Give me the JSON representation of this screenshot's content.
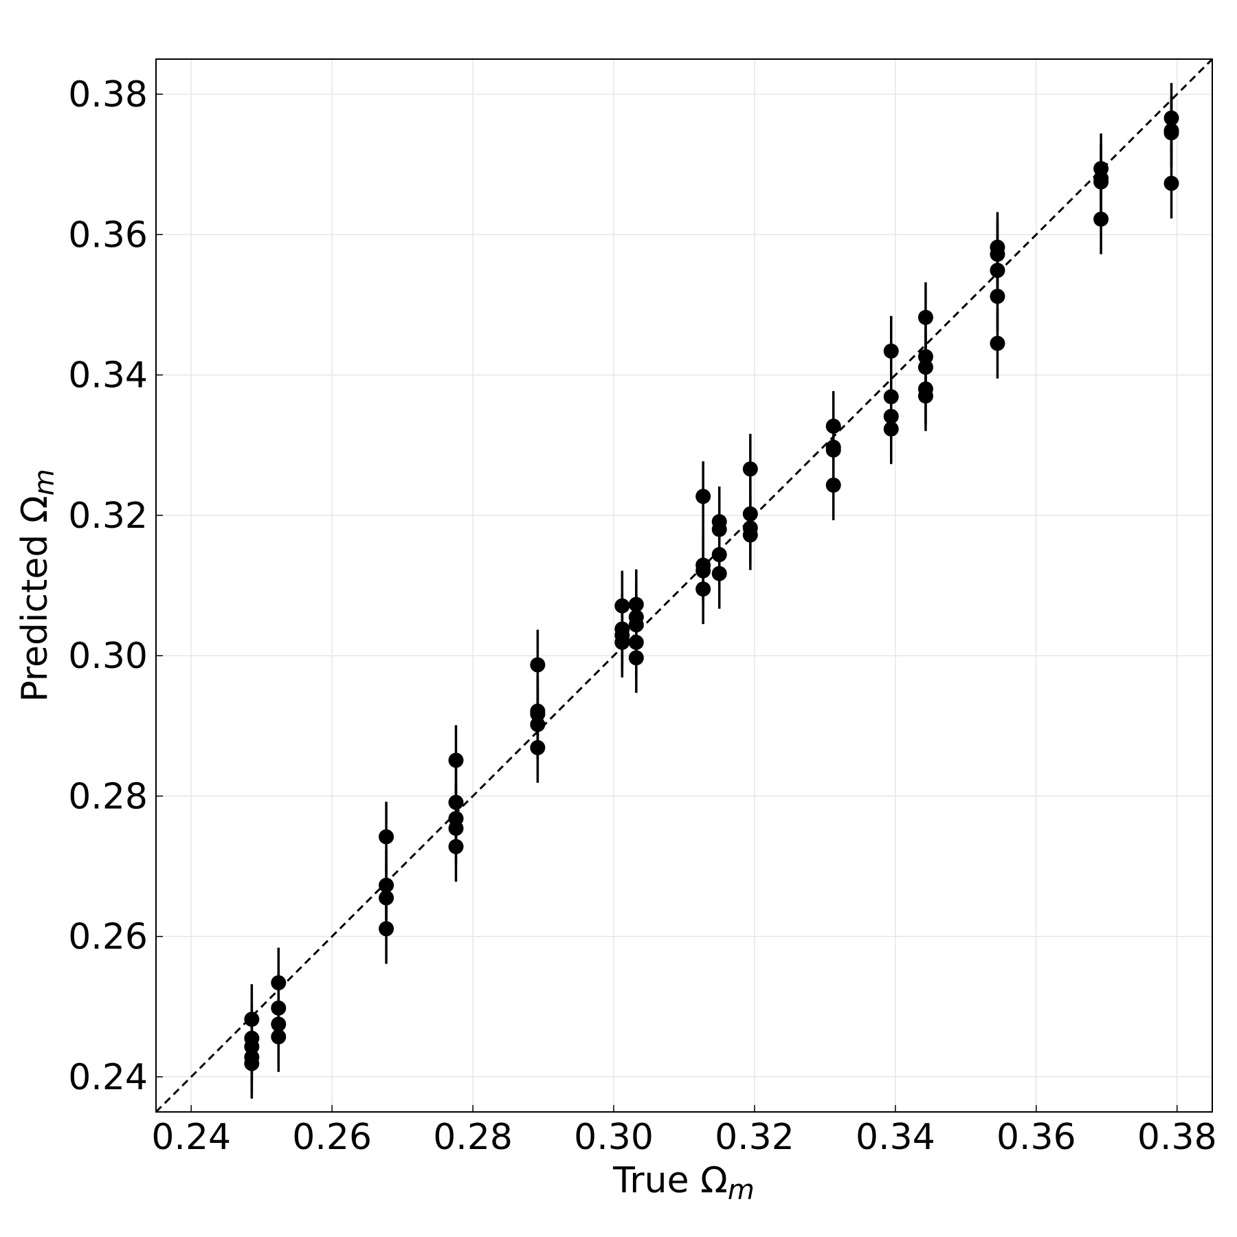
{
  "chart_data": {
    "type": "errorbar",
    "xlabel": "True Ω",
    "xlabel_sub": "m",
    "ylabel": "Predicted Ω",
    "ylabel_sub": "m",
    "xlim": [
      0.235,
      0.385
    ],
    "ylim": [
      0.235,
      0.385
    ],
    "xticks": [
      0.24,
      0.26,
      0.28,
      {
        "value": 0.3,
        "label": "0.30"
      },
      0.32,
      0.34,
      0.36,
      0.38
    ],
    "yticks": [
      0.24,
      0.26,
      0.28,
      {
        "value": 0.3,
        "label": "0.30"
      },
      0.32,
      0.34,
      0.36,
      0.38
    ],
    "grid": true,
    "identity_line": true,
    "color": "#000000",
    "points": {
      "x": [
        0.2486,
        0.2486,
        0.2486,
        0.2486,
        0.2486,
        0.2524,
        0.2524,
        0.2524,
        0.2524,
        0.2677,
        0.2677,
        0.2677,
        0.2677,
        0.2776,
        0.2776,
        0.2776,
        0.2776,
        0.2776,
        0.2892,
        0.2892,
        0.2892,
        0.2892,
        0.2892,
        0.3012,
        0.3012,
        0.3012,
        0.3012,
        0.3032,
        0.3032,
        0.3032,
        0.3032,
        0.3032,
        0.3127,
        0.3127,
        0.3127,
        0.3127,
        0.315,
        0.315,
        0.315,
        0.315,
        0.3194,
        0.3194,
        0.3194,
        0.3194,
        0.3312,
        0.3312,
        0.3312,
        0.3312,
        0.3394,
        0.3394,
        0.3394,
        0.3394,
        0.3443,
        0.3443,
        0.3443,
        0.3443,
        0.3443,
        0.3545,
        0.3545,
        0.3545,
        0.3545,
        0.3545,
        0.3692,
        0.3692,
        0.3692,
        0.3692,
        0.3792,
        0.3792,
        0.3792,
        0.3792
      ],
      "y": [
        0.2482,
        0.2455,
        0.2443,
        0.2428,
        0.2419,
        0.2534,
        0.2498,
        0.2475,
        0.2457,
        0.2742,
        0.2673,
        0.2655,
        0.2611,
        0.2851,
        0.2791,
        0.2768,
        0.2754,
        0.2728,
        0.2987,
        0.2921,
        0.2917,
        0.2902,
        0.2869,
        0.3071,
        0.3038,
        0.3029,
        0.3019,
        0.3073,
        0.3055,
        0.3044,
        0.3019,
        0.2997,
        0.3227,
        0.3129,
        0.3121,
        0.3095,
        0.3191,
        0.318,
        0.3144,
        0.3117,
        0.3266,
        0.3202,
        0.3182,
        0.3172,
        0.3327,
        0.3297,
        0.3293,
        0.3243,
        0.3434,
        0.3369,
        0.3341,
        0.3323,
        0.3482,
        0.3426,
        0.3411,
        0.338,
        0.337,
        0.3582,
        0.3572,
        0.3549,
        0.3512,
        0.3445,
        0.3694,
        0.368,
        0.3675,
        0.3622,
        0.3766,
        0.3748,
        0.3745,
        0.3673
      ],
      "yerr": [
        0.005,
        0.005,
        0.005,
        0.005,
        0.005,
        0.005,
        0.005,
        0.005,
        0.005,
        0.005,
        0.005,
        0.005,
        0.005,
        0.005,
        0.005,
        0.005,
        0.005,
        0.005,
        0.005,
        0.005,
        0.005,
        0.005,
        0.005,
        0.005,
        0.005,
        0.005,
        0.005,
        0.005,
        0.005,
        0.005,
        0.005,
        0.005,
        0.005,
        0.005,
        0.005,
        0.005,
        0.005,
        0.005,
        0.005,
        0.005,
        0.005,
        0.005,
        0.005,
        0.005,
        0.005,
        0.005,
        0.005,
        0.005,
        0.005,
        0.005,
        0.005,
        0.005,
        0.005,
        0.005,
        0.005,
        0.005,
        0.005,
        0.005,
        0.005,
        0.005,
        0.005,
        0.005,
        0.005,
        0.005,
        0.005,
        0.005,
        0.005,
        0.005,
        0.005,
        0.005
      ]
    }
  }
}
